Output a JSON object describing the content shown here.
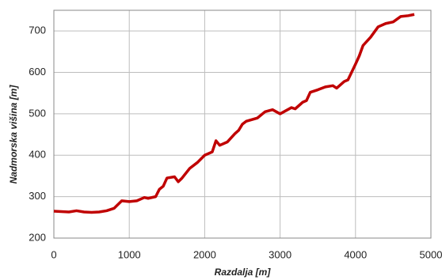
{
  "chart_data": {
    "type": "line",
    "x_label": "Razdalja [m]",
    "y_label": "Nadmorska višina [m]",
    "x": [
      0,
      100,
      200,
      300,
      400,
      500,
      600,
      700,
      800,
      900,
      1000,
      1100,
      1200,
      1250,
      1350,
      1400,
      1450,
      1500,
      1600,
      1650,
      1700,
      1800,
      1900,
      2000,
      2100,
      2150,
      2200,
      2300,
      2400,
      2450,
      2500,
      2550,
      2700,
      2800,
      2900,
      3000,
      3100,
      3150,
      3200,
      3300,
      3350,
      3400,
      3500,
      3600,
      3700,
      3750,
      3850,
      3900,
      4000,
      4050,
      4100,
      4200,
      4300,
      4400,
      4500,
      4600,
      4700,
      4780
    ],
    "series": [
      {
        "color": "#c00000",
        "values": [
          265,
          264,
          263,
          266,
          263,
          262,
          263,
          266,
          272,
          290,
          288,
          290,
          298,
          296,
          300,
          318,
          325,
          345,
          348,
          336,
          345,
          368,
          382,
          400,
          408,
          435,
          424,
          432,
          452,
          460,
          475,
          482,
          490,
          505,
          510,
          500,
          510,
          515,
          512,
          528,
          532,
          552,
          558,
          565,
          568,
          562,
          578,
          582,
          620,
          640,
          665,
          685,
          710,
          718,
          722,
          735,
          737,
          740
        ]
      }
    ],
    "xlim": [
      0,
      5000
    ],
    "xticks": [
      0,
      1000,
      2000,
      3000,
      4000,
      5000
    ],
    "ylim": [
      200,
      750
    ],
    "yticks": [
      200,
      300,
      400,
      500,
      600,
      700
    ],
    "grid": true
  }
}
